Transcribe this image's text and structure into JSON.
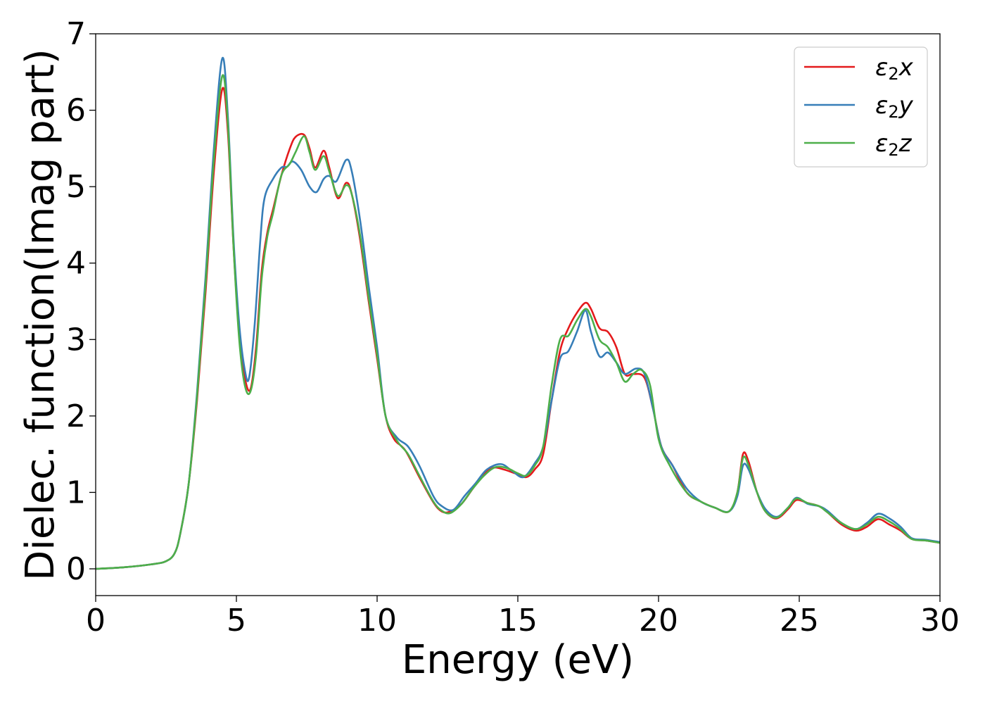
{
  "chart_data": {
    "type": "line",
    "title": "",
    "xlabel": "Energy (eV)",
    "ylabel": "Dielec. function(Imag part)",
    "xlim": [
      0,
      30
    ],
    "ylim": [
      -0.35,
      7.0
    ],
    "xticks": [
      0,
      5,
      10,
      15,
      20,
      25,
      30
    ],
    "yticks": [
      0,
      1,
      2,
      3,
      4,
      5,
      6,
      7
    ],
    "grid": false,
    "legend_position": "top-right",
    "series": [
      {
        "name": "ε2x",
        "symbol": "ε",
        "subscript": "2",
        "axis": "x",
        "color": "#e41a1c",
        "points": [
          [
            0,
            0
          ],
          [
            1,
            0.02
          ],
          [
            2,
            0.06
          ],
          [
            2.5,
            0.1
          ],
          [
            2.8,
            0.2
          ],
          [
            3,
            0.45
          ],
          [
            3.3,
            1.1
          ],
          [
            3.6,
            2.2
          ],
          [
            3.9,
            3.6
          ],
          [
            4.2,
            5.2
          ],
          [
            4.5,
            6.28
          ],
          [
            4.7,
            5.7
          ],
          [
            4.9,
            4.2
          ],
          [
            5.1,
            3.1
          ],
          [
            5.3,
            2.5
          ],
          [
            5.5,
            2.35
          ],
          [
            5.7,
            2.9
          ],
          [
            5.9,
            3.9
          ],
          [
            6.1,
            4.4
          ],
          [
            6.3,
            4.7
          ],
          [
            6.6,
            5.15
          ],
          [
            6.9,
            5.5
          ],
          [
            7.1,
            5.65
          ],
          [
            7.4,
            5.68
          ],
          [
            7.6,
            5.5
          ],
          [
            7.8,
            5.25
          ],
          [
            8.1,
            5.47
          ],
          [
            8.3,
            5.25
          ],
          [
            8.6,
            4.85
          ],
          [
            8.9,
            5.05
          ],
          [
            9.1,
            4.9
          ],
          [
            9.4,
            4.3
          ],
          [
            9.7,
            3.5
          ],
          [
            10.0,
            2.75
          ],
          [
            10.3,
            2.0
          ],
          [
            10.6,
            1.7
          ],
          [
            11.0,
            1.55
          ],
          [
            11.5,
            1.2
          ],
          [
            12.0,
            0.87
          ],
          [
            12.3,
            0.75
          ],
          [
            12.6,
            0.75
          ],
          [
            13.0,
            0.85
          ],
          [
            13.4,
            1.05
          ],
          [
            13.7,
            1.2
          ],
          [
            14.1,
            1.32
          ],
          [
            14.5,
            1.3
          ],
          [
            14.9,
            1.25
          ],
          [
            15.3,
            1.2
          ],
          [
            15.6,
            1.3
          ],
          [
            15.9,
            1.5
          ],
          [
            16.2,
            2.2
          ],
          [
            16.5,
            2.85
          ],
          [
            16.8,
            3.15
          ],
          [
            17.1,
            3.35
          ],
          [
            17.4,
            3.48
          ],
          [
            17.6,
            3.4
          ],
          [
            17.9,
            3.15
          ],
          [
            18.2,
            3.1
          ],
          [
            18.5,
            2.9
          ],
          [
            18.8,
            2.55
          ],
          [
            19.1,
            2.55
          ],
          [
            19.5,
            2.5
          ],
          [
            19.8,
            2.1
          ],
          [
            20.1,
            1.6
          ],
          [
            20.5,
            1.35
          ],
          [
            21.0,
            1.0
          ],
          [
            21.5,
            0.88
          ],
          [
            22.0,
            0.8
          ],
          [
            22.5,
            0.75
          ],
          [
            22.8,
            1.0
          ],
          [
            23.0,
            1.5
          ],
          [
            23.2,
            1.4
          ],
          [
            23.5,
            1.0
          ],
          [
            23.8,
            0.75
          ],
          [
            24.2,
            0.66
          ],
          [
            24.6,
            0.78
          ],
          [
            24.9,
            0.9
          ],
          [
            25.3,
            0.86
          ],
          [
            25.7,
            0.82
          ],
          [
            26.0,
            0.74
          ],
          [
            26.5,
            0.58
          ],
          [
            27.0,
            0.5
          ],
          [
            27.4,
            0.55
          ],
          [
            27.8,
            0.65
          ],
          [
            28.2,
            0.58
          ],
          [
            28.6,
            0.5
          ],
          [
            29.0,
            0.39
          ],
          [
            29.5,
            0.37
          ],
          [
            30.0,
            0.34
          ]
        ]
      },
      {
        "name": "ε2y",
        "symbol": "ε",
        "subscript": "2",
        "axis": "y",
        "color": "#377eb8",
        "points": [
          [
            0,
            0
          ],
          [
            1,
            0.02
          ],
          [
            2,
            0.06
          ],
          [
            2.5,
            0.1
          ],
          [
            2.8,
            0.2
          ],
          [
            3,
            0.45
          ],
          [
            3.3,
            1.1
          ],
          [
            3.6,
            2.3
          ],
          [
            3.9,
            3.8
          ],
          [
            4.2,
            5.5
          ],
          [
            4.5,
            6.68
          ],
          [
            4.7,
            5.9
          ],
          [
            4.9,
            4.3
          ],
          [
            5.1,
            3.2
          ],
          [
            5.3,
            2.6
          ],
          [
            5.45,
            2.5
          ],
          [
            5.65,
            3.2
          ],
          [
            5.85,
            4.3
          ],
          [
            6.0,
            4.85
          ],
          [
            6.3,
            5.1
          ],
          [
            6.6,
            5.25
          ],
          [
            6.8,
            5.26
          ],
          [
            7.0,
            5.33
          ],
          [
            7.3,
            5.22
          ],
          [
            7.6,
            5.0
          ],
          [
            7.85,
            4.93
          ],
          [
            8.1,
            5.1
          ],
          [
            8.3,
            5.14
          ],
          [
            8.55,
            5.07
          ],
          [
            8.9,
            5.35
          ],
          [
            9.1,
            5.2
          ],
          [
            9.4,
            4.55
          ],
          [
            9.7,
            3.7
          ],
          [
            10.0,
            2.9
          ],
          [
            10.3,
            2.0
          ],
          [
            10.7,
            1.72
          ],
          [
            11.1,
            1.6
          ],
          [
            11.5,
            1.35
          ],
          [
            12.0,
            0.95
          ],
          [
            12.3,
            0.82
          ],
          [
            12.7,
            0.77
          ],
          [
            13.1,
            0.95
          ],
          [
            13.5,
            1.12
          ],
          [
            13.9,
            1.3
          ],
          [
            14.4,
            1.37
          ],
          [
            14.8,
            1.28
          ],
          [
            15.2,
            1.2
          ],
          [
            15.6,
            1.38
          ],
          [
            15.9,
            1.6
          ],
          [
            16.2,
            2.2
          ],
          [
            16.5,
            2.75
          ],
          [
            16.8,
            2.85
          ],
          [
            17.1,
            3.1
          ],
          [
            17.4,
            3.38
          ],
          [
            17.6,
            3.1
          ],
          [
            17.9,
            2.78
          ],
          [
            18.2,
            2.83
          ],
          [
            18.5,
            2.7
          ],
          [
            18.8,
            2.55
          ],
          [
            19.2,
            2.62
          ],
          [
            19.5,
            2.55
          ],
          [
            19.8,
            2.1
          ],
          [
            20.1,
            1.6
          ],
          [
            20.5,
            1.35
          ],
          [
            21.0,
            1.05
          ],
          [
            21.5,
            0.88
          ],
          [
            22.0,
            0.8
          ],
          [
            22.5,
            0.75
          ],
          [
            22.8,
            0.95
          ],
          [
            23.0,
            1.35
          ],
          [
            23.2,
            1.3
          ],
          [
            23.5,
            1.0
          ],
          [
            23.8,
            0.78
          ],
          [
            24.2,
            0.68
          ],
          [
            24.6,
            0.8
          ],
          [
            24.9,
            0.93
          ],
          [
            25.3,
            0.85
          ],
          [
            25.7,
            0.82
          ],
          [
            26.0,
            0.76
          ],
          [
            26.5,
            0.6
          ],
          [
            27.0,
            0.52
          ],
          [
            27.4,
            0.6
          ],
          [
            27.8,
            0.72
          ],
          [
            28.2,
            0.66
          ],
          [
            28.6,
            0.55
          ],
          [
            29.0,
            0.4
          ],
          [
            29.5,
            0.38
          ],
          [
            30.0,
            0.35
          ]
        ]
      },
      {
        "name": "ε2z",
        "symbol": "ε",
        "subscript": "2",
        "axis": "z",
        "color": "#4daf4a",
        "points": [
          [
            0,
            0
          ],
          [
            1,
            0.02
          ],
          [
            2,
            0.06
          ],
          [
            2.5,
            0.1
          ],
          [
            2.8,
            0.2
          ],
          [
            3,
            0.45
          ],
          [
            3.3,
            1.1
          ],
          [
            3.6,
            2.25
          ],
          [
            3.9,
            3.7
          ],
          [
            4.2,
            5.35
          ],
          [
            4.5,
            6.45
          ],
          [
            4.7,
            5.8
          ],
          [
            4.9,
            4.2
          ],
          [
            5.1,
            3.0
          ],
          [
            5.3,
            2.4
          ],
          [
            5.5,
            2.32
          ],
          [
            5.7,
            2.8
          ],
          [
            5.9,
            3.8
          ],
          [
            6.1,
            4.35
          ],
          [
            6.3,
            4.65
          ],
          [
            6.6,
            5.15
          ],
          [
            6.9,
            5.3
          ],
          [
            7.1,
            5.45
          ],
          [
            7.4,
            5.66
          ],
          [
            7.6,
            5.45
          ],
          [
            7.8,
            5.22
          ],
          [
            8.1,
            5.4
          ],
          [
            8.3,
            5.2
          ],
          [
            8.6,
            4.88
          ],
          [
            8.9,
            5.02
          ],
          [
            9.1,
            4.9
          ],
          [
            9.4,
            4.35
          ],
          [
            9.7,
            3.55
          ],
          [
            10.0,
            2.8
          ],
          [
            10.3,
            2.0
          ],
          [
            10.7,
            1.68
          ],
          [
            11.1,
            1.5
          ],
          [
            11.5,
            1.22
          ],
          [
            12.0,
            0.88
          ],
          [
            12.3,
            0.76
          ],
          [
            12.6,
            0.73
          ],
          [
            13.0,
            0.85
          ],
          [
            13.4,
            1.05
          ],
          [
            13.8,
            1.22
          ],
          [
            14.2,
            1.33
          ],
          [
            14.6,
            1.32
          ],
          [
            15.0,
            1.25
          ],
          [
            15.3,
            1.22
          ],
          [
            15.6,
            1.35
          ],
          [
            15.9,
            1.6
          ],
          [
            16.2,
            2.4
          ],
          [
            16.5,
            3.0
          ],
          [
            16.8,
            3.05
          ],
          [
            17.1,
            3.25
          ],
          [
            17.4,
            3.4
          ],
          [
            17.6,
            3.3
          ],
          [
            17.9,
            3.0
          ],
          [
            18.2,
            2.9
          ],
          [
            18.5,
            2.7
          ],
          [
            18.8,
            2.45
          ],
          [
            19.1,
            2.55
          ],
          [
            19.4,
            2.6
          ],
          [
            19.7,
            2.4
          ],
          [
            20.0,
            1.7
          ],
          [
            20.4,
            1.35
          ],
          [
            21.0,
            1.0
          ],
          [
            21.5,
            0.88
          ],
          [
            22.0,
            0.8
          ],
          [
            22.5,
            0.75
          ],
          [
            22.8,
            1.0
          ],
          [
            23.0,
            1.45
          ],
          [
            23.2,
            1.35
          ],
          [
            23.5,
            1.0
          ],
          [
            23.8,
            0.75
          ],
          [
            24.2,
            0.67
          ],
          [
            24.6,
            0.8
          ],
          [
            24.9,
            0.92
          ],
          [
            25.3,
            0.86
          ],
          [
            25.7,
            0.82
          ],
          [
            26.0,
            0.74
          ],
          [
            26.5,
            0.6
          ],
          [
            27.0,
            0.52
          ],
          [
            27.4,
            0.58
          ],
          [
            27.8,
            0.68
          ],
          [
            28.2,
            0.62
          ],
          [
            28.6,
            0.52
          ],
          [
            29.0,
            0.39
          ],
          [
            29.5,
            0.37
          ],
          [
            30.0,
            0.34
          ]
        ]
      }
    ]
  }
}
